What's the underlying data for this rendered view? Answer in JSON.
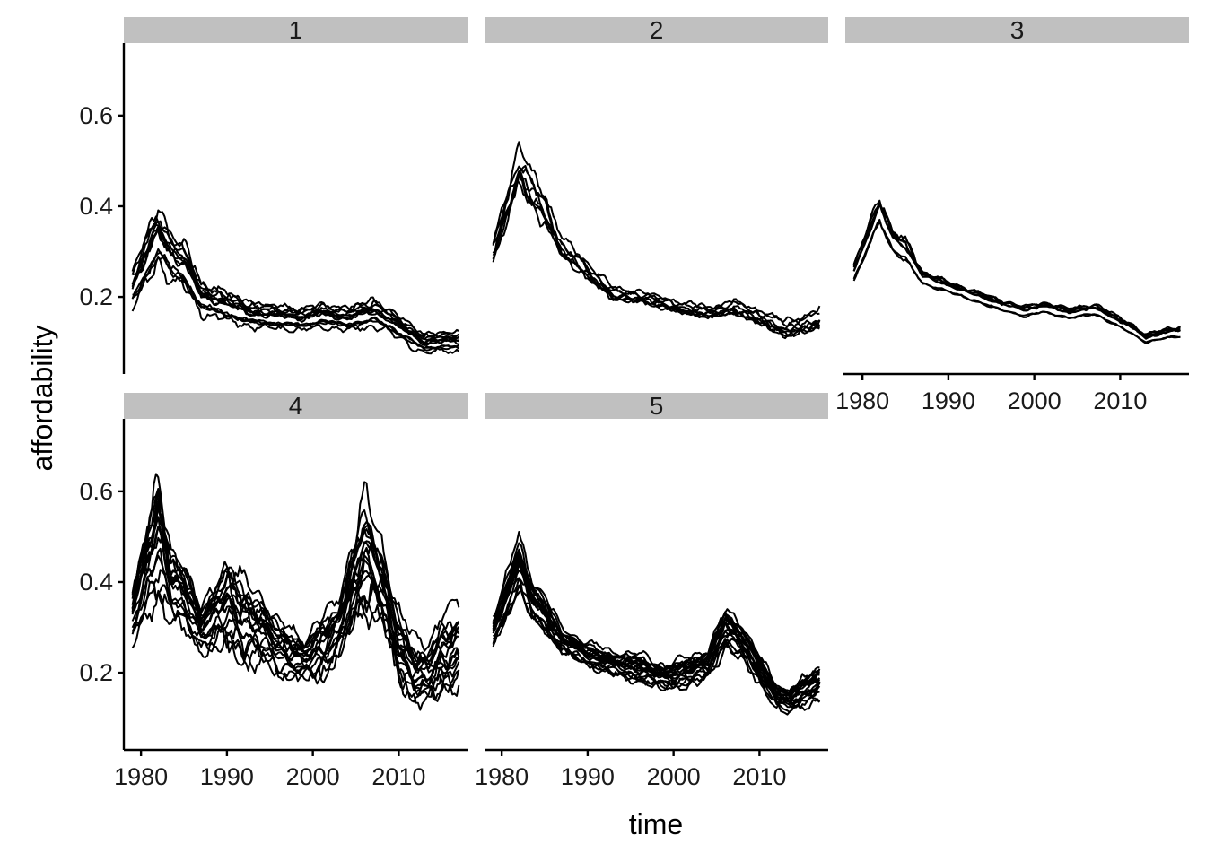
{
  "chart_data": {
    "type": "line",
    "facet_layout": "wrap",
    "xlabel": "time",
    "ylabel": "affordability",
    "xlim": [
      1978,
      2018
    ],
    "ylim": [
      0.03,
      0.76
    ],
    "x_ticks": [
      1980,
      1990,
      2000,
      2010
    ],
    "x_tick_labels": [
      "1980",
      "1990",
      "2000",
      "2010"
    ],
    "y_ticks": [
      0.2,
      0.4,
      0.6
    ],
    "y_tick_labels": [
      "0.2",
      "0.4",
      "0.6"
    ],
    "grid": false,
    "legend": "none",
    "line_color": "#000000",
    "strip_color": "#c0c0c0",
    "facets": [
      {
        "label": "1",
        "series_count": 12,
        "x": [
          1979,
          1980.5,
          1982,
          1983.5,
          1985,
          1987,
          1990,
          1993,
          1996,
          1999,
          2001,
          2004,
          2007,
          2009,
          2011,
          2013,
          2015,
          2017
        ],
        "mean": [
          0.22,
          0.28,
          0.34,
          0.29,
          0.27,
          0.2,
          0.18,
          0.16,
          0.155,
          0.15,
          0.16,
          0.15,
          0.165,
          0.145,
          0.12,
          0.095,
          0.1,
          0.1
        ],
        "spread": [
          0.06,
          0.08,
          0.09,
          0.08,
          0.07,
          0.05,
          0.045,
          0.04,
          0.035,
          0.035,
          0.035,
          0.035,
          0.04,
          0.035,
          0.03,
          0.03,
          0.025,
          0.03
        ]
      },
      {
        "label": "2",
        "series_count": 8,
        "x": [
          1979,
          1980.5,
          1982,
          1983.5,
          1985,
          1987,
          1990,
          1993,
          1996,
          1999,
          2001,
          2004,
          2007,
          2009,
          2011,
          2013,
          2015,
          2017
        ],
        "mean": [
          0.29,
          0.38,
          0.47,
          0.42,
          0.38,
          0.3,
          0.25,
          0.2,
          0.195,
          0.18,
          0.17,
          0.16,
          0.17,
          0.155,
          0.14,
          0.12,
          0.13,
          0.14
        ],
        "spread": [
          0.05,
          0.08,
          0.1,
          0.09,
          0.08,
          0.05,
          0.04,
          0.035,
          0.03,
          0.03,
          0.03,
          0.03,
          0.035,
          0.035,
          0.04,
          0.04,
          0.045,
          0.05
        ]
      },
      {
        "label": "3",
        "series_count": 8,
        "x": [
          1979,
          1980.5,
          1982,
          1983.5,
          1985,
          1987,
          1990,
          1993,
          1996,
          1999,
          2001,
          2004,
          2007,
          2009,
          2011,
          2013,
          2015,
          2017
        ],
        "mean": [
          0.25,
          0.32,
          0.39,
          0.32,
          0.3,
          0.24,
          0.22,
          0.2,
          0.18,
          0.165,
          0.175,
          0.16,
          0.17,
          0.15,
          0.13,
          0.105,
          0.115,
          0.12
        ],
        "spread": [
          0.03,
          0.04,
          0.05,
          0.04,
          0.04,
          0.025,
          0.02,
          0.02,
          0.02,
          0.02,
          0.02,
          0.02,
          0.02,
          0.02,
          0.02,
          0.015,
          0.02,
          0.02
        ]
      },
      {
        "label": "4",
        "series_count": 18,
        "x": [
          1979,
          1980.5,
          1982,
          1983.5,
          1985,
          1987,
          1990,
          1992,
          1994,
          1996,
          1999,
          2001,
          2003,
          2006,
          2008,
          2010,
          2012,
          2013.5,
          2015,
          2017
        ],
        "mean": [
          0.33,
          0.43,
          0.52,
          0.4,
          0.38,
          0.3,
          0.36,
          0.32,
          0.3,
          0.26,
          0.23,
          0.26,
          0.3,
          0.47,
          0.4,
          0.26,
          0.2,
          0.2,
          0.24,
          0.26
        ],
        "spread": [
          0.08,
          0.12,
          0.17,
          0.1,
          0.1,
          0.06,
          0.13,
          0.12,
          0.1,
          0.08,
          0.06,
          0.09,
          0.09,
          0.17,
          0.12,
          0.1,
          0.09,
          0.09,
          0.11,
          0.12
        ]
      },
      {
        "label": "5",
        "series_count": 20,
        "x": [
          1979,
          1980.5,
          1982,
          1983.5,
          1985,
          1987,
          1990,
          1993,
          1996,
          1999,
          2001,
          2004,
          2006,
          2008,
          2010,
          2012,
          2013.5,
          2015,
          2017
        ],
        "mean": [
          0.29,
          0.36,
          0.44,
          0.36,
          0.33,
          0.27,
          0.24,
          0.22,
          0.21,
          0.19,
          0.2,
          0.22,
          0.3,
          0.27,
          0.21,
          0.15,
          0.14,
          0.16,
          0.18
        ],
        "spread": [
          0.05,
          0.07,
          0.09,
          0.07,
          0.06,
          0.04,
          0.04,
          0.04,
          0.05,
          0.04,
          0.05,
          0.05,
          0.07,
          0.06,
          0.05,
          0.04,
          0.04,
          0.05,
          0.06
        ]
      }
    ]
  }
}
